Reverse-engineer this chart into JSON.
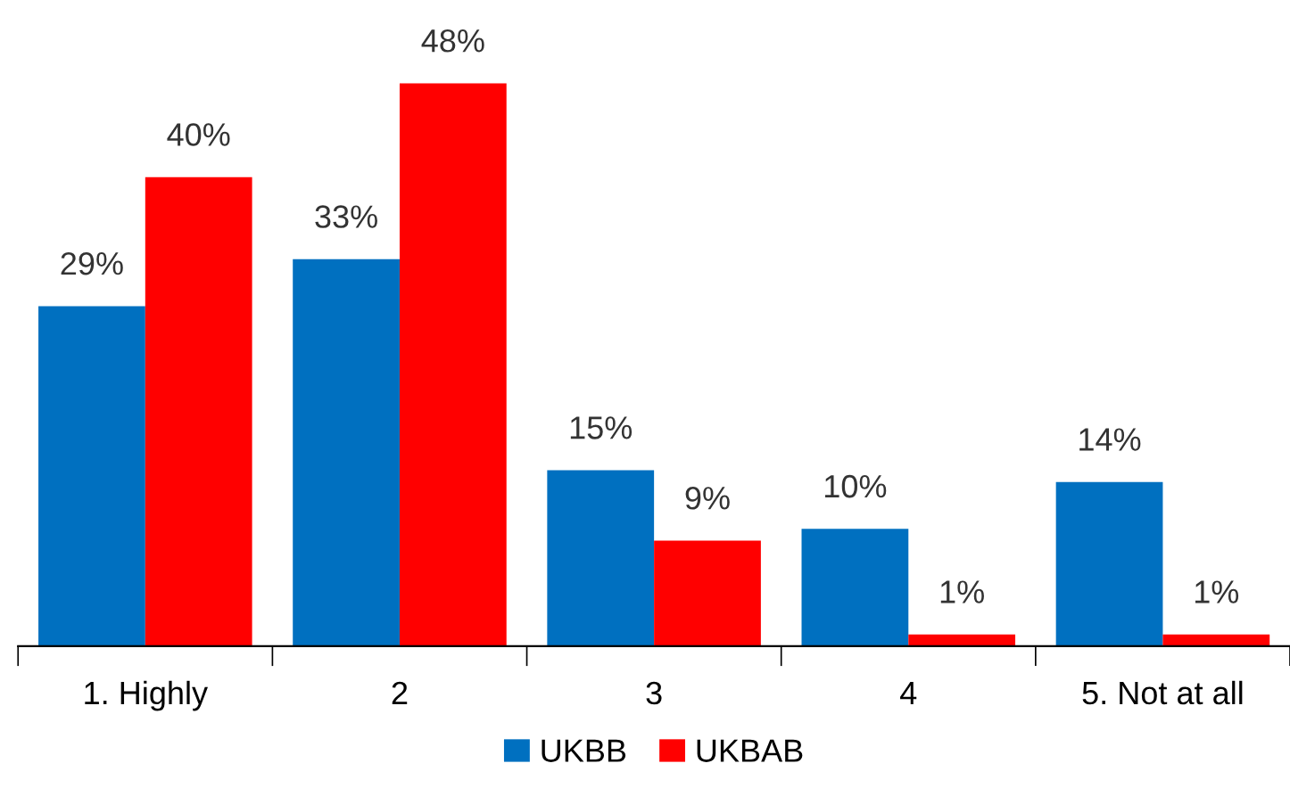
{
  "chart_data": {
    "type": "bar",
    "categories": [
      "1. Highly",
      "2",
      "3",
      "4",
      "5. Not at all"
    ],
    "series": [
      {
        "name": "UKBB",
        "color": "#0070c0",
        "values": [
          29,
          33,
          15,
          10,
          14
        ],
        "value_labels": [
          "29%",
          "33%",
          "15%",
          "10%",
          "14%"
        ]
      },
      {
        "name": "UKBAB",
        "color": "#ff0000",
        "values": [
          40,
          48,
          9,
          1,
          1
        ],
        "value_labels": [
          "40%",
          "48%",
          "9%",
          "1%",
          "1%"
        ]
      }
    ],
    "legend": "bottom",
    "grid": false
  }
}
